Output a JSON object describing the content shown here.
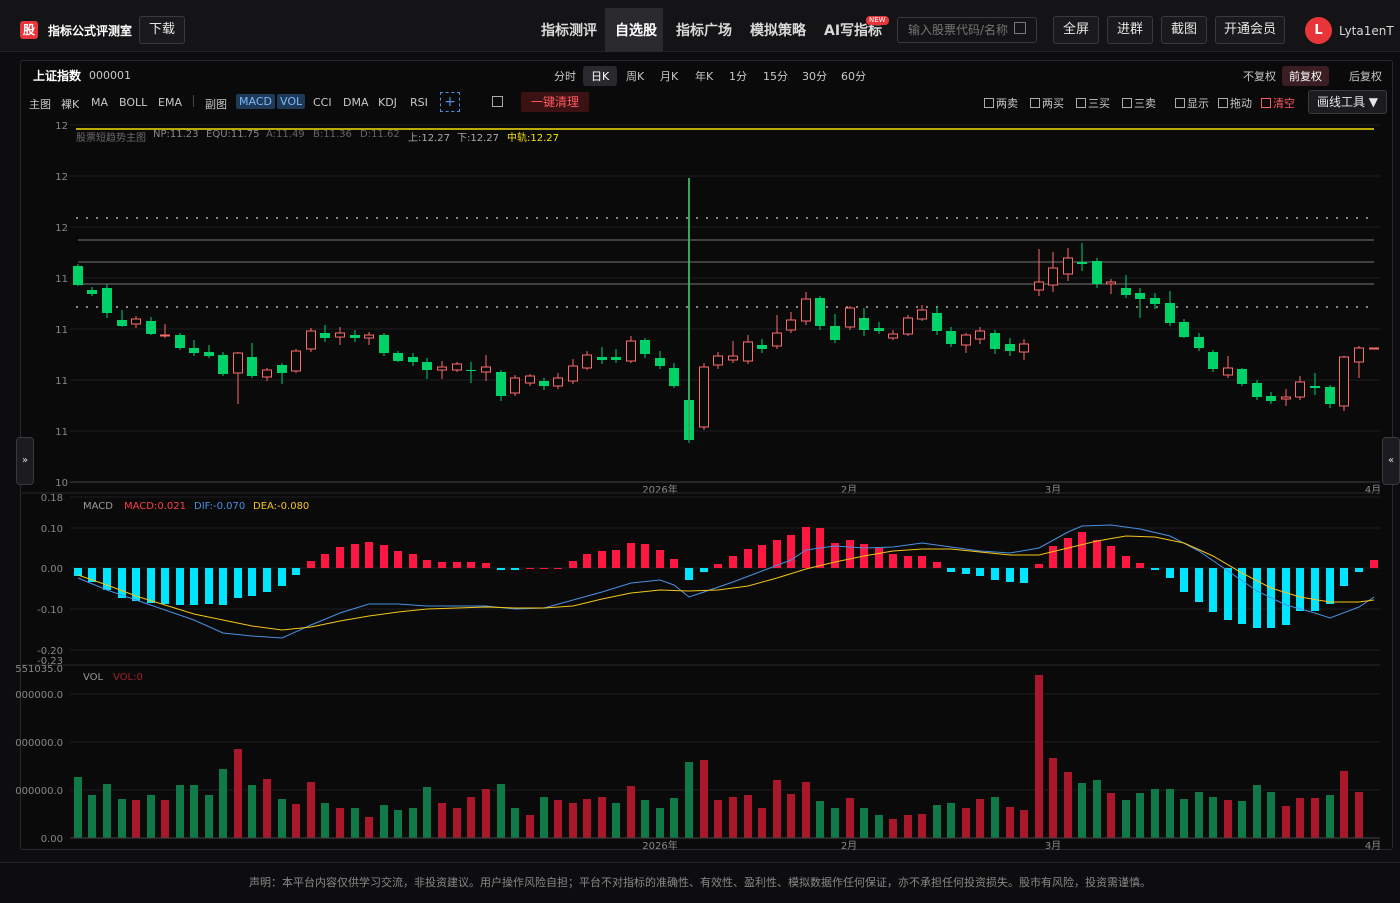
{
  "header": {
    "logo_char": "股",
    "app_title": "指标公式评测室",
    "download": "下载",
    "nav": [
      "指标测评",
      "自选股",
      "指标广场",
      "模拟策略",
      "AI写指标"
    ],
    "new_badge": "NEW",
    "search_placeholder": "输入股票代码/名称",
    "buttons": [
      "全屏",
      "进群",
      "截图",
      "开通会员"
    ],
    "avatar_letter": "L",
    "username": "Lyta1enT"
  },
  "toolbar": {
    "stock_name": "上证指数",
    "stock_code": "000001",
    "periods": [
      "分时",
      "日K",
      "周K",
      "月K",
      "年K",
      "1分",
      "15分",
      "30分",
      "60分"
    ],
    "active_period": "日K",
    "adjust": [
      "不复权",
      "前复权",
      "后复权"
    ],
    "active_adjust": "前复权",
    "main_label": "主图",
    "main_indicators": [
      "裸K",
      "MA",
      "BOLL",
      "EMA"
    ],
    "sub_label": "副图",
    "sub_indicators": [
      "MACD",
      "VOL",
      "CCI",
      "DMA",
      "KDJ",
      "RSI"
    ],
    "clear_all": "一键清理",
    "toggles": [
      "两卖",
      "两买",
      "三买",
      "三卖",
      "显示",
      "拖动",
      "清空"
    ],
    "draw_tools": "画线工具 ▼"
  },
  "main_chart": {
    "legend": {
      "name": "股票短趋势主图",
      "NP": "NP:11.23",
      "EQU": "EQU:11.75",
      "A": "A:11.49",
      "B": "B:11.36",
      "D": "D:11.62",
      "up": "上:12.27",
      "down": "下:12.27",
      "mid": "中轨:12.27"
    },
    "y_ticks": [
      "12",
      "12",
      "12",
      "11",
      "11",
      "11",
      "11",
      "10"
    ],
    "x_ticks": [
      "2026年",
      "2月",
      "3月",
      "4月"
    ]
  },
  "macd": {
    "name": "MACD",
    "macd_val": "MACD:0.021",
    "dif_val": "DIF:-0.070",
    "dea_val": "DEA:-0.080",
    "y_ticks": [
      "0.18",
      "0.10",
      "0.00",
      "-0.10",
      "-0.20",
      "-0.23"
    ]
  },
  "vol": {
    "name": "VOL",
    "vol_val": "VOL:0",
    "y_ticks": [
      "551035.0",
      "000000.0",
      "000000.0",
      "000000.0",
      "0.00"
    ],
    "x_ticks": [
      "2026年",
      "2月",
      "3月",
      "4月"
    ]
  },
  "colors": {
    "up": "#ff3b4a",
    "down": "#00d26a",
    "macd_pos": "#ff1744",
    "macd_neg": "#00e5ff",
    "dif": "#4a90e2",
    "dea": "#f5c518"
  },
  "footer": "声明：本平台内容仅供学习交流，非投资建议。用户操作风险自担；平台不对指标的准确性、有效性、盈利性、模拟数据作任何保证，亦不承担任何投资损失。股市有风险，投资需谨慎。"
}
